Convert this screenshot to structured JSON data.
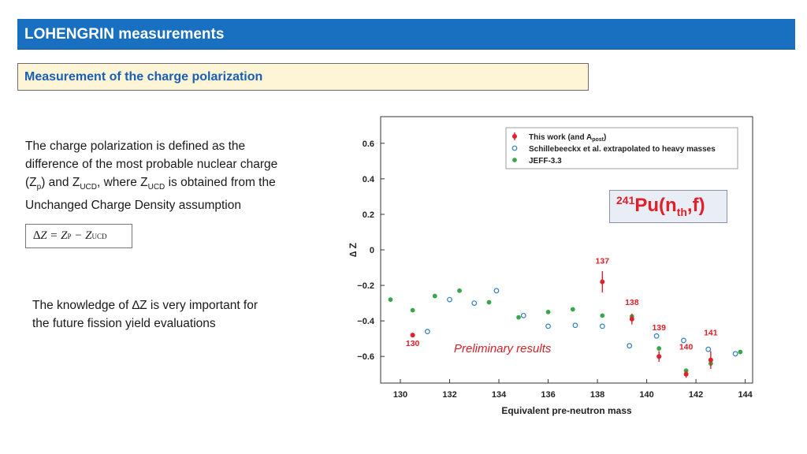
{
  "header": {
    "title": "LOHENGRIN measurements"
  },
  "section": {
    "title": "Measurement of the charge polarization"
  },
  "intro": {
    "line1": "The charge polarization is defined as the",
    "line2": "difference of the most probable nuclear charge",
    "line3_a": "(Z",
    "line3_b": "p",
    "line3_c": ") and Z",
    "line3_d": "UCD",
    "line3_e": ", where Z",
    "line3_f": "UCD",
    "line3_g": " is obtained from the",
    "line4": "Unchanged Charge Density assumption"
  },
  "formula": {
    "delta": "∆",
    "z": "Z = Z",
    "p": "P",
    "minus": " − Z",
    "ucd": "UCD"
  },
  "knowledge": {
    "line1_a": "The knowledge of ",
    "line1_b": "∆",
    "line1_c": "Z is very important for",
    "line2": "the future fission yield evaluations"
  },
  "reaction": {
    "mass": "241",
    "element": "Pu(n",
    "sub": "th",
    "tail": ",f)"
  },
  "colors": {
    "header_bg": "#1a70c0",
    "subtitle_bg": "#fdf5d6",
    "red": "#e0202a",
    "blue": "#2f7fc1",
    "green": "#3aa64a"
  },
  "chart_data": {
    "type": "scatter",
    "xlabel": "Equivalent pre-neutron mass",
    "ylabel": "∆ Z",
    "xlim": [
      129.2,
      144.3
    ],
    "ylim": [
      -0.75,
      0.75
    ],
    "x_ticks": [
      130,
      132,
      134,
      136,
      138,
      140,
      142,
      144
    ],
    "y_ticks": [
      0.6,
      0.4,
      0.2,
      0,
      -0.2,
      -0.4,
      -0.6
    ],
    "y_tick_labels": [
      "0.6",
      "0.4",
      "0.2",
      "0",
      "−0.2",
      "−0.4",
      "−0.6"
    ],
    "legend": {
      "placement": "top-right",
      "entries": [
        {
          "a": "This work (and A",
          "sub": "post",
          "b": ")"
        },
        {
          "a": "Schillebeeckx et al. extrapolated to heavy masses",
          "sub": "",
          "b": ""
        },
        {
          "a": "JEFF-3.3",
          "sub": "",
          "b": ""
        }
      ]
    },
    "series": [
      {
        "name": "This work (and Apost)",
        "marker": "filled-red-errorbar",
        "points": [
          {
            "x": 130.5,
            "y": -0.48,
            "err": 0.01
          },
          {
            "x": 138.2,
            "y": -0.18,
            "err": 0.06
          },
          {
            "x": 139.4,
            "y": -0.39,
            "err": 0.03
          },
          {
            "x": 140.5,
            "y": -0.6,
            "err": 0.03
          },
          {
            "x": 141.6,
            "y": -0.7,
            "err": 0.02
          },
          {
            "x": 142.6,
            "y": -0.62,
            "err": 0.05
          }
        ]
      },
      {
        "name": "Schillebeeckx et al. extrapolated to heavy masses",
        "marker": "open-blue-circle",
        "points": [
          {
            "x": 131.1,
            "y": -0.46
          },
          {
            "x": 132.0,
            "y": -0.28
          },
          {
            "x": 133.0,
            "y": -0.3
          },
          {
            "x": 133.9,
            "y": -0.23
          },
          {
            "x": 135.0,
            "y": -0.37
          },
          {
            "x": 136.0,
            "y": -0.43
          },
          {
            "x": 137.1,
            "y": -0.425
          },
          {
            "x": 138.2,
            "y": -0.43
          },
          {
            "x": 139.3,
            "y": -0.54
          },
          {
            "x": 140.4,
            "y": -0.485
          },
          {
            "x": 141.5,
            "y": -0.51
          },
          {
            "x": 142.5,
            "y": -0.56
          },
          {
            "x": 143.6,
            "y": -0.585
          }
        ]
      },
      {
        "name": "JEFF-3.3",
        "marker": "filled-green-dot",
        "points": [
          {
            "x": 129.6,
            "y": -0.28
          },
          {
            "x": 130.5,
            "y": -0.34
          },
          {
            "x": 131.4,
            "y": -0.26
          },
          {
            "x": 132.4,
            "y": -0.23
          },
          {
            "x": 133.6,
            "y": -0.295
          },
          {
            "x": 134.8,
            "y": -0.38
          },
          {
            "x": 136.0,
            "y": -0.35
          },
          {
            "x": 137.0,
            "y": -0.335
          },
          {
            "x": 138.2,
            "y": -0.37
          },
          {
            "x": 139.4,
            "y": -0.375
          },
          {
            "x": 140.5,
            "y": -0.555
          },
          {
            "x": 141.6,
            "y": -0.68
          },
          {
            "x": 142.6,
            "y": -0.64
          },
          {
            "x": 143.8,
            "y": -0.575
          }
        ]
      }
    ],
    "annotations": [
      {
        "text": "130",
        "x": 130.5,
        "y": -0.48
      },
      {
        "text": "137",
        "x": 138.2,
        "y": -0.18
      },
      {
        "text": "138",
        "x": 139.4,
        "y": -0.39
      },
      {
        "text": "139",
        "x": 140.5,
        "y": -0.6
      },
      {
        "text": "140",
        "x": 141.6,
        "y": -0.7
      },
      {
        "text": "141",
        "x": 142.6,
        "y": -0.62
      }
    ],
    "note": "Preliminary results"
  }
}
